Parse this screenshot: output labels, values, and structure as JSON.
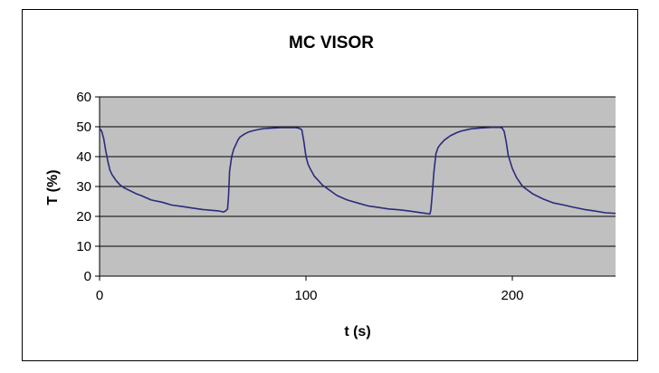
{
  "chart_data": {
    "type": "line",
    "title": "MC VISOR",
    "xlabel": "t (s)",
    "ylabel": "T (%)",
    "xlim": [
      0,
      250
    ],
    "ylim": [
      0,
      60
    ],
    "x_ticks": [
      0,
      100,
      200
    ],
    "y_ticks": [
      0,
      10,
      20,
      30,
      40,
      50,
      60
    ],
    "x_tick_labels": [
      "0",
      "100",
      "200"
    ],
    "y_tick_labels": [
      "0",
      "10",
      "20",
      "30",
      "40",
      "50",
      "60"
    ],
    "grid": "horizontal",
    "legend": "none",
    "colors": {
      "plot_background": "#c0c0c0",
      "line": "#2b2b7c",
      "grid": "#000000"
    },
    "series": [
      {
        "x": [
          0,
          1,
          2,
          3,
          4,
          5,
          6,
          8,
          10,
          12,
          15,
          18,
          20,
          25,
          30,
          35,
          40,
          45,
          50,
          55,
          58,
          60,
          61,
          62,
          62.5,
          63,
          64,
          65,
          66,
          67,
          68,
          70,
          72,
          75,
          78,
          80,
          82,
          85,
          88,
          90,
          93,
          95,
          96,
          97,
          98,
          99,
          100,
          101,
          102,
          104,
          106,
          108,
          110,
          113,
          115,
          120,
          125,
          130,
          135,
          140,
          145,
          150,
          155,
          158,
          159,
          160,
          160.5,
          161,
          162,
          163,
          164,
          165,
          167,
          170,
          173,
          175,
          178,
          180,
          183,
          185,
          188,
          190,
          193,
          194,
          195,
          196,
          197,
          198,
          200,
          202,
          205,
          210,
          215,
          220,
          225,
          230,
          235,
          240,
          245,
          250
        ],
        "y": [
          49.5,
          48.5,
          46,
          42,
          38.5,
          35.5,
          34,
          32,
          30.5,
          29.5,
          28.5,
          27.5,
          27,
          25.5,
          24.8,
          23.8,
          23.3,
          22.8,
          22.3,
          22,
          21.8,
          21.5,
          21.8,
          22.5,
          27,
          35,
          40,
          42.5,
          44,
          45.5,
          46.5,
          47.5,
          48.2,
          48.8,
          49.2,
          49.4,
          49.5,
          49.6,
          49.7,
          49.7,
          49.7,
          49.7,
          49.6,
          49.4,
          49,
          45,
          40,
          37.5,
          36,
          33.5,
          32,
          30.5,
          29.5,
          28,
          27,
          25.5,
          24.5,
          23.5,
          23,
          22.5,
          22.2,
          21.8,
          21.3,
          21,
          20.9,
          20.8,
          22,
          26,
          35,
          41,
          43,
          44,
          45.5,
          47,
          48,
          48.5,
          49,
          49.3,
          49.5,
          49.6,
          49.7,
          49.8,
          49.8,
          49.8,
          49.6,
          48.5,
          45,
          40.5,
          36,
          33,
          30,
          27.5,
          25.8,
          24.5,
          23.8,
          23,
          22.3,
          21.8,
          21.2,
          21
        ]
      }
    ]
  }
}
